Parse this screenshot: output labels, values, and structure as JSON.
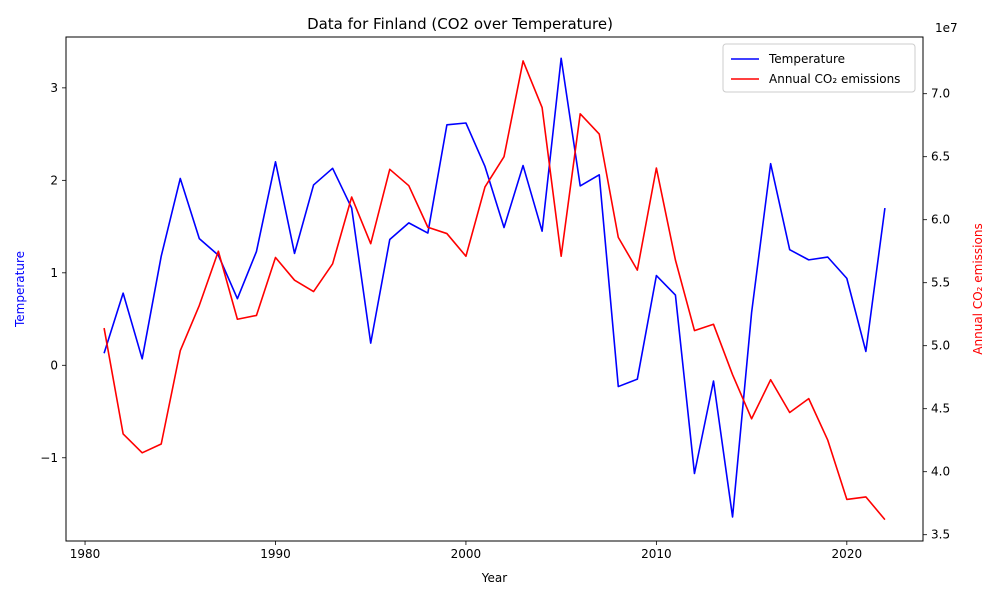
{
  "chart_data": {
    "type": "line",
    "title": "Data for Finland (CO2 over Temperature)",
    "xlabel": "Year",
    "ylabel_left": "Temperature",
    "ylabel_right": "Annual CO₂ emissions",
    "right_axis_offset_text": "1e7",
    "xlim": [
      1979,
      2024
    ],
    "ylim_left": [
      -1.9,
      3.55
    ],
    "ylim_right": [
      3.45,
      7.45
    ],
    "x_ticks": [
      1980,
      1990,
      2000,
      2010,
      2020
    ],
    "y_left_ticks": [
      -1,
      0,
      1,
      2,
      3
    ],
    "y_left_tick_labels": [
      "−1",
      "0",
      "1",
      "2",
      "3"
    ],
    "y_right_ticks": [
      3.5,
      4.0,
      4.5,
      5.0,
      5.5,
      6.0,
      6.5,
      7.0
    ],
    "y_right_tick_labels": [
      "3.5",
      "4.0",
      "4.5",
      "5.0",
      "5.5",
      "6.0",
      "6.5",
      "7.0"
    ],
    "legend_position": "top-right",
    "grid": false,
    "x": [
      1981,
      1982,
      1983,
      1984,
      1985,
      1986,
      1987,
      1988,
      1989,
      1990,
      1991,
      1992,
      1993,
      1994,
      1995,
      1996,
      1997,
      1998,
      1999,
      2000,
      2001,
      2002,
      2003,
      2004,
      2005,
      2006,
      2007,
      2008,
      2009,
      2010,
      2011,
      2012,
      2013,
      2014,
      2015,
      2016,
      2017,
      2018,
      2019,
      2020,
      2021,
      2022
    ],
    "series": [
      {
        "name": "Temperature",
        "axis": "left",
        "color": "#0000ff",
        "values": [
          0.13,
          0.78,
          0.07,
          1.18,
          2.02,
          1.37,
          1.19,
          0.72,
          1.23,
          2.2,
          1.21,
          1.95,
          2.13,
          1.7,
          0.24,
          1.36,
          1.54,
          1.43,
          2.6,
          2.62,
          2.15,
          1.49,
          2.16,
          1.45,
          3.32,
          1.94,
          2.06,
          -0.23,
          -0.15,
          0.97,
          0.76,
          -1.17,
          -0.17,
          -1.64,
          0.57,
          2.18,
          1.25,
          1.14,
          1.17,
          0.94,
          0.15,
          1.7
        ]
      },
      {
        "name": "Annual CO₂ emissions",
        "axis": "right",
        "color": "#ff0000",
        "values": [
          5.14,
          4.3,
          4.15,
          4.22,
          4.96,
          5.32,
          5.75,
          5.21,
          5.24,
          5.7,
          5.52,
          5.43,
          5.65,
          6.18,
          5.81,
          6.4,
          6.27,
          5.94,
          5.89,
          5.71,
          6.26,
          6.5,
          7.26,
          6.89,
          5.71,
          6.84,
          6.68,
          5.86,
          5.6,
          6.41,
          5.68,
          5.12,
          5.17,
          4.77,
          4.42,
          4.73,
          4.47,
          4.58,
          4.25,
          3.78,
          3.8,
          3.62
        ]
      }
    ]
  }
}
